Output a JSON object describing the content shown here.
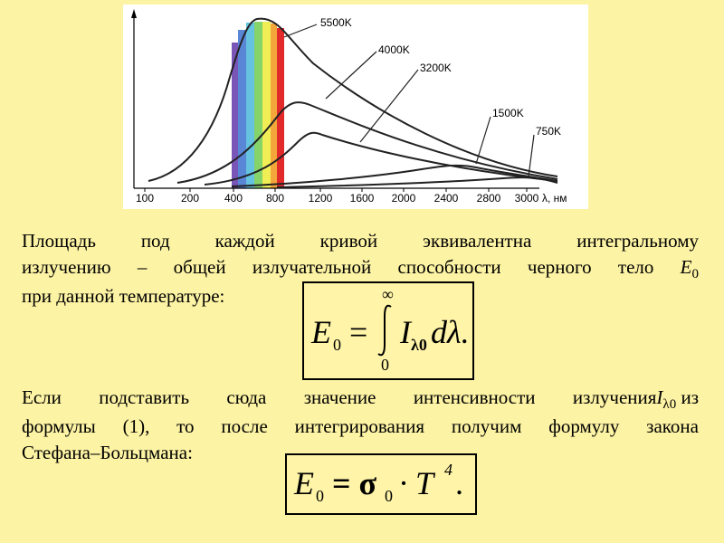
{
  "chart_data": {
    "type": "line",
    "x_ticks": [
      "100",
      "200",
      "400",
      "800",
      "1200",
      "1600",
      "2000",
      "2400",
      "2800",
      "3000"
    ],
    "x_axis_label": "λ, нм",
    "series": [
      {
        "name": "5500K"
      },
      {
        "name": "4000K"
      },
      {
        "name": "3200K"
      },
      {
        "name": "1500K"
      },
      {
        "name": "750K"
      }
    ],
    "visible_spectrum_band": [
      "violet",
      "blue",
      "cyan",
      "green",
      "yellow",
      "orange",
      "red"
    ],
    "colors": {
      "violet": "#7a55b8",
      "blue": "#5a86d6",
      "cyan": "#65c3e0",
      "green": "#86d36a",
      "yellow": "#f1ee55",
      "orange": "#f3a63a",
      "red": "#e32a2a"
    }
  },
  "text": {
    "para1_lines": [
      "Площадь под каждой кривой эквивалентна интегральному",
      "излучению – общей излучательной способности черного тело ",
      "при данной температуре:"
    ],
    "para1_symbol": "E",
    "para1_symbol_sub": "0",
    "para2_lines": [
      "Если подставить сюда значение интенсивности излучения ",
      " из",
      "формулы (1), то после интегрирования получим формулу закона",
      "Стефана–Больцмана:"
    ],
    "para2_symbol": "I",
    "para2_symbol_sub": "λ0"
  },
  "formulas": {
    "f1_lhs": "E",
    "f1_lhs_sub": "0",
    "f1_eq": "=",
    "f1_upper": "∞",
    "f1_lower": "0",
    "f1_integrand": "I",
    "f1_integrand_sub": "λ0",
    "f1_diff": "dλ.",
    "f2_lhs": "E",
    "f2_lhs_sub": "0",
    "f2_rhs": "= σ",
    "f2_rhs_sub": "0",
    "f2_tail": "· T",
    "f2_power": "4",
    "f2_end": "."
  }
}
